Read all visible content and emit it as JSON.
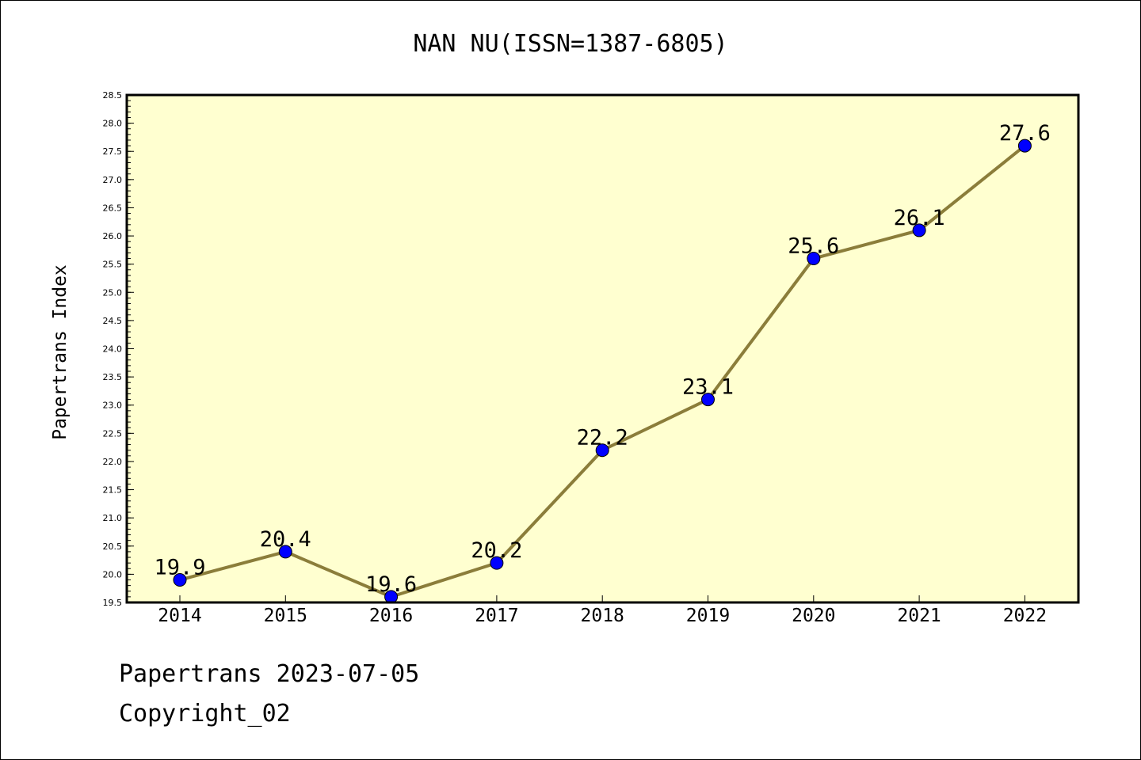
{
  "chart_data": {
    "type": "line",
    "title": "NAN NU(ISSN=1387-6805)",
    "xlabel": "",
    "ylabel": "Papertrans Index",
    "categories": [
      "2014",
      "2015",
      "2016",
      "2017",
      "2018",
      "2019",
      "2020",
      "2021",
      "2022"
    ],
    "series": [
      {
        "values": [
          19.9,
          20.4,
          19.6,
          20.2,
          22.2,
          23.1,
          25.6,
          26.1,
          27.6
        ],
        "labels": [
          "19.9",
          "20.4",
          "19.6",
          "20.2",
          "22.2",
          "23.1",
          "25.6",
          "26.1",
          "27.6"
        ]
      }
    ],
    "ylim": [
      19.5,
      28.5
    ],
    "yticks": [
      "19.5",
      "20.0",
      "20.5",
      "21.0",
      "21.5",
      "22.0",
      "22.5",
      "23.0",
      "23.5",
      "24.0",
      "24.5",
      "25.0",
      "25.5",
      "26.0",
      "26.5",
      "27.0",
      "27.5",
      "28.0",
      "28.5"
    ],
    "grid": false,
    "legend": "none",
    "colors": {
      "plot_background": "#ffffd0",
      "line": "#8b7d3a",
      "marker": "#0000ff"
    }
  },
  "footer": {
    "line1": "Papertrans 2023-07-05",
    "line2": "Copyright_02"
  }
}
